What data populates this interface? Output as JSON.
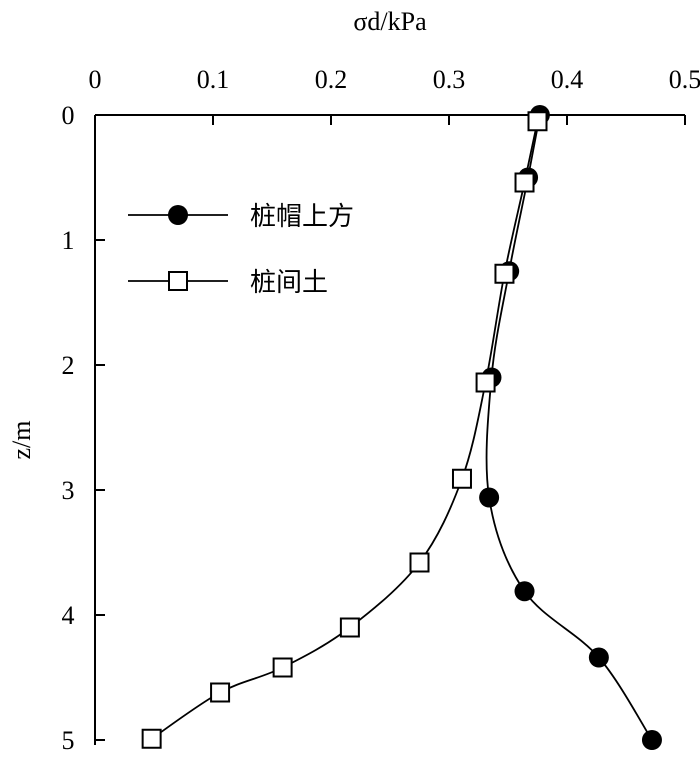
{
  "chart_data": {
    "type": "line",
    "x_label": "σd/kPa",
    "y_label": "z/m",
    "xlim": [
      0,
      0.5
    ],
    "xticks": [
      0,
      0.1,
      0.2,
      0.3,
      0.4,
      0.5
    ],
    "ylim": [
      0,
      5
    ],
    "yticks": [
      0,
      1,
      2,
      3,
      4,
      5
    ],
    "y_inverted": true,
    "x_axis_position": "top",
    "smooth": true,
    "legend_position": "upper left",
    "series": [
      {
        "name": "桩帽上方",
        "color": "#000000",
        "marker": "filled-circle",
        "x": [
          0.377,
          0.367,
          0.351,
          0.336,
          0.334,
          0.364,
          0.427,
          0.472
        ],
        "y": [
          0,
          0.5,
          1.25,
          2.1,
          3.06,
          3.81,
          4.34,
          5.0
        ]
      },
      {
        "name": "桩间土",
        "color": "#000000",
        "marker": "open-square",
        "x": [
          0.375,
          0.364,
          0.347,
          0.331,
          0.311,
          0.275,
          0.216,
          0.159,
          0.106,
          0.048
        ],
        "y": [
          0.05,
          0.54,
          1.27,
          2.14,
          2.91,
          3.58,
          4.1,
          4.42,
          4.62,
          4.99
        ]
      }
    ]
  }
}
